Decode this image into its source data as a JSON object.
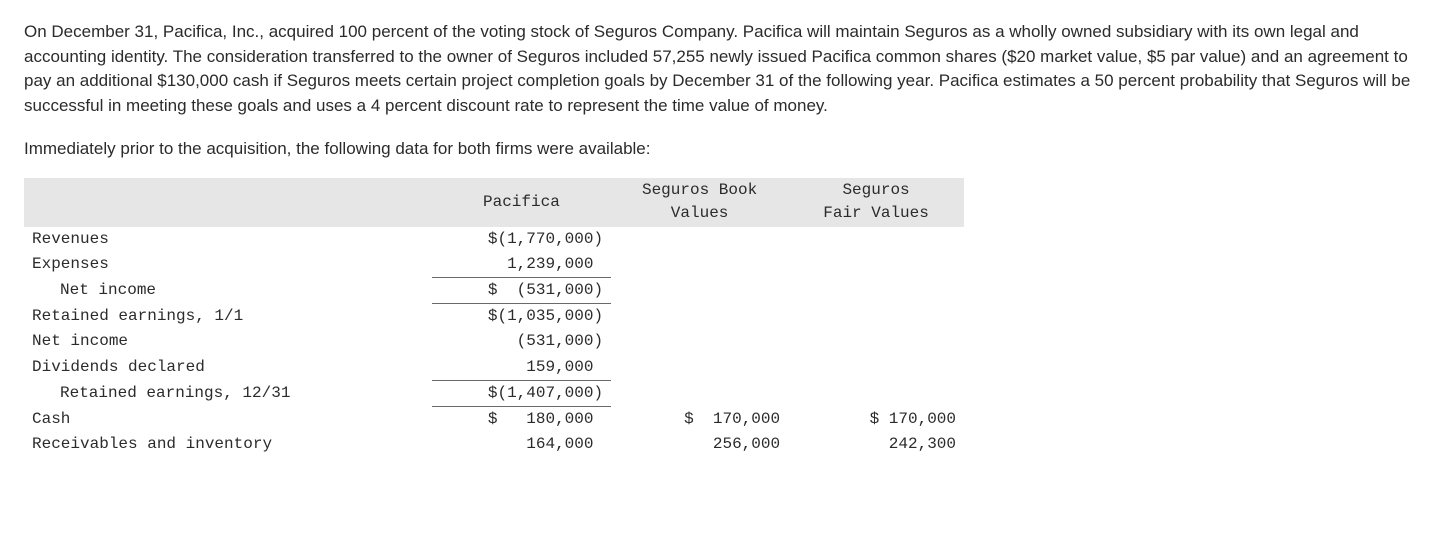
{
  "narrative": {
    "p1": "On December 31, Pacifica, Inc., acquired 100 percent of the voting stock of Seguros Company. Pacifica will maintain Seguros as a wholly owned subsidiary with its own legal and accounting identity. The consideration transferred to the owner of Seguros included 57,255 newly issued Pacifica common shares ($20 market value, $5 par value) and an agreement to pay an additional $130,000 cash if Seguros meets certain project completion goals by December 31 of the following year. Pacifica estimates a 50 percent probability that Seguros will be successful in meeting these goals and uses a 4 percent discount rate to represent the time value of money.",
    "p2": "Immediately prior to the acquisition, the following data for both firms were available:"
  },
  "table": {
    "headers": {
      "c1": "",
      "c2": "Pacifica",
      "c3_l1": "Seguros Book",
      "c3_l2": "Values",
      "c4_l1": "Seguros",
      "c4_l2": "Fair Values"
    },
    "rows": {
      "revenues": {
        "label": "Revenues",
        "pacifica": "$(1,770,000)",
        "book": "",
        "fair": ""
      },
      "expenses": {
        "label": "Expenses",
        "pacifica": "1,239,000 ",
        "book": "",
        "fair": ""
      },
      "netincome1": {
        "label": "Net income",
        "pacifica": "$  (531,000)",
        "book": "",
        "fair": ""
      },
      "re11": {
        "label": "Retained earnings, 1/1",
        "pacifica": "$(1,035,000)",
        "book": "",
        "fair": ""
      },
      "netincome2": {
        "label": "Net income",
        "pacifica": "(531,000)",
        "book": "",
        "fair": ""
      },
      "dividends": {
        "label": "Dividends declared",
        "pacifica": "159,000 ",
        "book": "",
        "fair": ""
      },
      "re1231": {
        "label": "Retained earnings, 12/31",
        "pacifica": "$(1,407,000)",
        "book": "",
        "fair": ""
      },
      "cash": {
        "label": "Cash",
        "pacifica": "$   180,000 ",
        "book": "$  170,000",
        "fair": "$ 170,000"
      },
      "recv": {
        "label": "Receivables and inventory",
        "pacifica": "164,000 ",
        "book": "256,000",
        "fair": "242,300"
      }
    }
  }
}
